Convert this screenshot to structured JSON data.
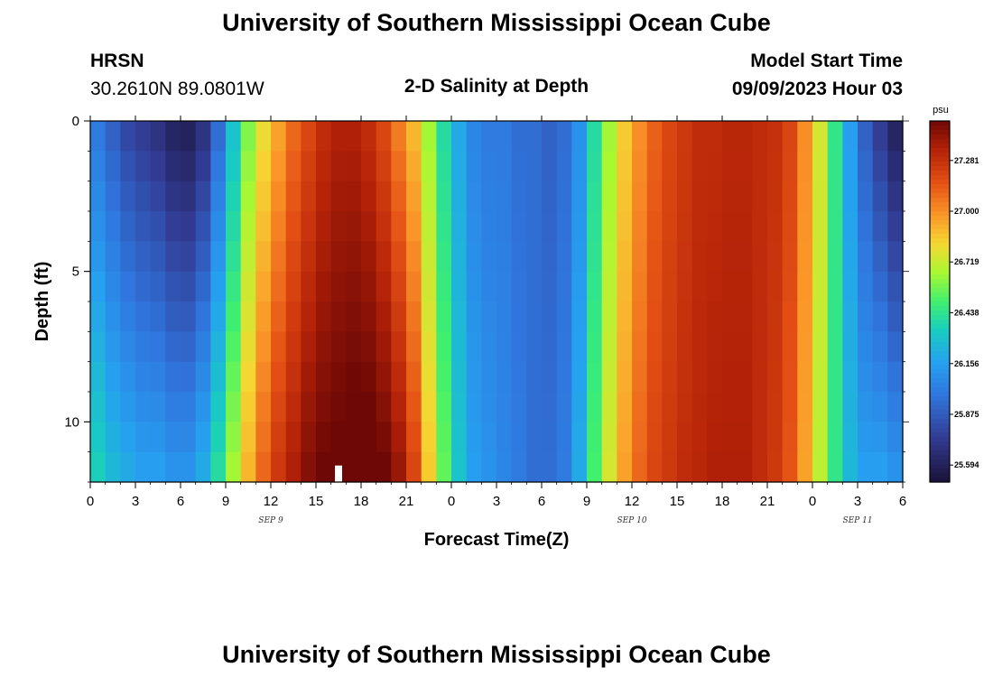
{
  "header": {
    "title": "University of Southern Mississippi Ocean Cube",
    "station_code": "HRSN",
    "coordinates": "30.2610N  89.0801W",
    "plot_title": "2-D Salinity at Depth",
    "model_start_label": "Model Start Time",
    "model_start_value": "09/09/2023 Hour 03"
  },
  "footer": {
    "title": "University of Southern Mississippi Ocean Cube"
  },
  "chart_data": {
    "type": "heatmap",
    "title": "2-D Salinity at Depth",
    "xlabel": "Forecast Time(Z)",
    "ylabel": "Depth (ft)",
    "colorbar_unit": "psu",
    "colorbar_ticks": [
      25.594,
      25.875,
      26.156,
      26.438,
      26.719,
      27.0,
      27.281
    ],
    "zlim": [
      25.5,
      27.5
    ],
    "xlim_hours": [
      0,
      54
    ],
    "x_tick_labels": [
      "0",
      "3",
      "6",
      "9",
      "12",
      "15",
      "18",
      "21",
      "0",
      "3",
      "6",
      "9",
      "12",
      "15",
      "18",
      "21",
      "0",
      "3",
      "6"
    ],
    "day_labels": [
      {
        "label": "SEP 9",
        "hour": 12
      },
      {
        "label": "SEP 10",
        "hour": 36
      },
      {
        "label": "SEP 11",
        "hour": 51
      }
    ],
    "y_tick_values": [
      0,
      5,
      10
    ],
    "ylim": [
      0,
      12
    ],
    "depth_layers": 12,
    "time_steps": 54,
    "surface_salinity_by_hour": [
      26.0,
      25.9,
      25.8,
      25.75,
      25.7,
      25.62,
      25.6,
      25.7,
      25.95,
      26.3,
      26.6,
      26.8,
      26.95,
      27.1,
      27.2,
      27.3,
      27.35,
      27.35,
      27.3,
      27.2,
      27.05,
      26.9,
      26.65,
      26.4,
      26.2,
      26.05,
      26.0,
      26.0,
      25.95,
      25.95,
      25.9,
      25.95,
      26.1,
      26.4,
      26.65,
      26.85,
      27.0,
      27.12,
      27.2,
      27.25,
      27.3,
      27.3,
      27.32,
      27.32,
      27.3,
      27.28,
      27.2,
      27.0,
      26.75,
      26.45,
      26.15,
      25.9,
      25.75,
      25.62
    ],
    "bottom_salinity_by_hour": [
      26.35,
      26.25,
      26.2,
      26.15,
      26.15,
      26.1,
      26.1,
      26.2,
      26.4,
      26.65,
      26.9,
      27.1,
      27.25,
      27.35,
      27.45,
      27.5,
      27.52,
      27.55,
      27.55,
      27.5,
      27.4,
      27.2,
      26.85,
      26.55,
      26.3,
      26.15,
      26.1,
      26.05,
      26.0,
      25.95,
      25.95,
      26.0,
      26.2,
      26.5,
      26.75,
      26.95,
      27.1,
      27.2,
      27.25,
      27.3,
      27.32,
      27.35,
      27.35,
      27.35,
      27.3,
      27.25,
      27.15,
      26.95,
      26.7,
      26.45,
      26.25,
      26.15,
      26.15,
      26.1
    ],
    "missing_cell": {
      "hour": 16.5,
      "depth_layer": 11
    }
  }
}
